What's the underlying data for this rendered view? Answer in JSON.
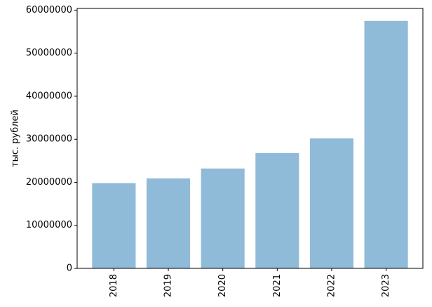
{
  "chart_data": {
    "type": "bar",
    "ylabel": "тыс. рублей",
    "categories": [
      "2018",
      "2019",
      "2020",
      "2021",
      "2022",
      "2023"
    ],
    "values": [
      19800000,
      20900000,
      23200000,
      26800000,
      30200000,
      57500000
    ],
    "color": "#8fbbd9",
    "ylim": [
      0,
      60400000
    ],
    "yticks": [
      0,
      10000000,
      20000000,
      30000000,
      40000000,
      50000000,
      60000000
    ],
    "grid": false
  }
}
